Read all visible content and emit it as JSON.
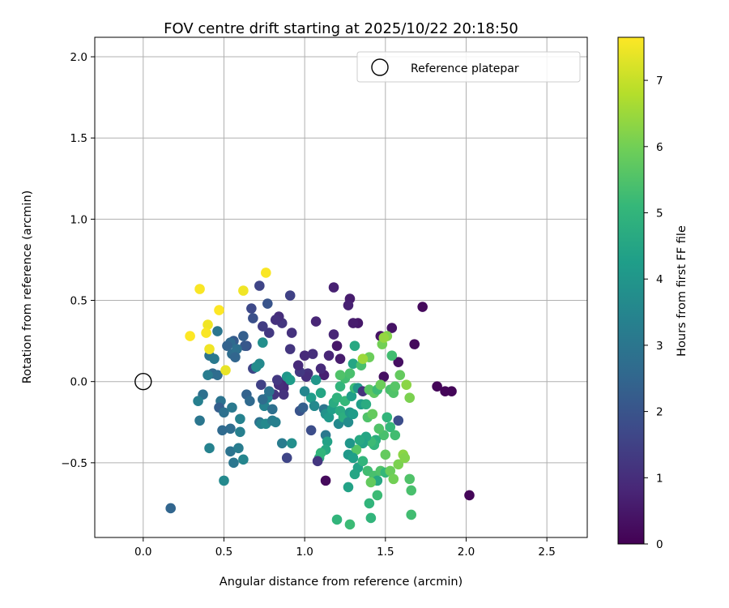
{
  "chart_data": {
    "type": "scatter",
    "title": "FOV centre drift starting at 2025/10/22 20:18:50",
    "xlabel": "Angular distance from reference (arcmin)",
    "ylabel": "Rotation from reference (arcmin)",
    "xlim": [
      -0.3,
      2.75
    ],
    "ylim": [
      -0.96,
      2.12
    ],
    "x_ticks": [
      0.0,
      0.5,
      1.0,
      1.5,
      2.0,
      2.5
    ],
    "x_tick_labels": [
      "0.0",
      "0.5",
      "1.0",
      "1.5",
      "2.0",
      "2.5"
    ],
    "y_ticks": [
      -0.5,
      0.0,
      0.5,
      1.0,
      1.5,
      2.0
    ],
    "y_tick_labels": [
      "−0.5",
      "0.0",
      "0.5",
      "1.0",
      "1.5",
      "2.0"
    ],
    "grid": true,
    "legend": {
      "label": "Reference platepar",
      "position": "top-right"
    },
    "reference_point": {
      "x": 0.0,
      "y": 0.0
    },
    "colorbar": {
      "label": "Hours from first FF file",
      "min": 0,
      "max": 7.65,
      "ticks": [
        0,
        1,
        2,
        3,
        4,
        5,
        6,
        7
      ],
      "tick_labels": [
        "0",
        "1",
        "2",
        "3",
        "4",
        "5",
        "6",
        "7"
      ],
      "colormap": "viridis",
      "stops": [
        "#440154",
        "#482878",
        "#3e4989",
        "#31688e",
        "#26828e",
        "#1f9e89",
        "#35b779",
        "#6ece58",
        "#b5de2b",
        "#fde725"
      ]
    },
    "series": [
      {
        "name": "FOV centre drift",
        "points": [
          [
            2.02,
            -0.7,
            0.1
          ],
          [
            1.91,
            -0.06,
            0.1
          ],
          [
            1.87,
            -0.06,
            0.1
          ],
          [
            1.82,
            -0.03,
            0.1
          ],
          [
            1.73,
            0.46,
            0.2
          ],
          [
            1.68,
            0.23,
            0.2
          ],
          [
            1.58,
            0.12,
            0.3
          ],
          [
            1.54,
            0.33,
            0.4
          ],
          [
            1.49,
            0.03,
            0.3
          ],
          [
            1.47,
            0.28,
            0.4
          ],
          [
            1.33,
            0.36,
            0.5
          ],
          [
            1.3,
            0.36,
            0.6
          ],
          [
            1.28,
            0.51,
            0.6
          ],
          [
            1.27,
            0.47,
            0.7
          ],
          [
            1.18,
            0.58,
            0.7
          ],
          [
            1.18,
            0.29,
            0.8
          ],
          [
            1.2,
            0.22,
            0.5
          ],
          [
            1.22,
            0.14,
            0.6
          ],
          [
            1.15,
            0.16,
            0.8
          ],
          [
            1.07,
            0.37,
            0.8
          ],
          [
            1.13,
            -0.61,
            0.2
          ],
          [
            1.12,
            0.04,
            0.7
          ],
          [
            1.1,
            0.08,
            0.9
          ],
          [
            1.05,
            0.17,
            1.0
          ],
          [
            1.02,
            0.05,
            1.1
          ],
          [
            1.0,
            0.16,
            0.9
          ],
          [
            1.01,
            0.03,
            1.0
          ],
          [
            0.97,
            0.06,
            1.3
          ],
          [
            0.96,
            0.1,
            0.9
          ],
          [
            0.92,
            0.3,
            1.1
          ],
          [
            0.91,
            0.2,
            1.2
          ],
          [
            0.86,
            0.36,
            1.2
          ],
          [
            0.84,
            0.4,
            1.0
          ],
          [
            0.82,
            0.38,
            1.1
          ],
          [
            0.78,
            0.3,
            1.3
          ],
          [
            0.74,
            0.34,
            1.4
          ],
          [
            0.91,
            0.53,
            1.5
          ],
          [
            0.72,
            0.59,
            1.6
          ],
          [
            0.67,
            0.45,
            1.7
          ],
          [
            0.68,
            0.39,
            1.9
          ],
          [
            0.77,
            0.48,
            2.0
          ],
          [
            0.88,
            0.0,
            0.8
          ],
          [
            0.87,
            -0.04,
            0.9
          ],
          [
            0.84,
            -0.02,
            1.0
          ],
          [
            0.81,
            -0.08,
            1.2
          ],
          [
            0.87,
            -0.08,
            1.1
          ],
          [
            0.83,
            0.01,
            1.3
          ],
          [
            0.73,
            -0.02,
            1.5
          ],
          [
            0.68,
            0.08,
            1.6
          ],
          [
            0.64,
            0.22,
            1.8
          ],
          [
            0.62,
            0.28,
            2.3
          ],
          [
            0.63,
            0.22,
            2.1
          ],
          [
            0.56,
            0.25,
            2.2
          ],
          [
            0.54,
            0.24,
            2.6
          ],
          [
            0.52,
            0.22,
            2.4
          ],
          [
            0.55,
            0.17,
            2.7
          ],
          [
            0.58,
            0.2,
            2.8
          ],
          [
            0.57,
            0.15,
            2.5
          ],
          [
            0.46,
            0.31,
            3.0
          ],
          [
            0.41,
            0.16,
            2.9
          ],
          [
            0.44,
            0.14,
            3.1
          ],
          [
            0.43,
            0.05,
            2.6
          ],
          [
            0.46,
            0.04,
            2.7
          ],
          [
            0.4,
            0.04,
            3.2
          ],
          [
            0.37,
            -0.08,
            2.8
          ],
          [
            0.34,
            -0.12,
            3.3
          ],
          [
            0.35,
            -0.24,
            3.0
          ],
          [
            0.41,
            -0.41,
            3.4
          ],
          [
            0.48,
            -0.12,
            2.9
          ],
          [
            0.47,
            -0.16,
            2.3
          ],
          [
            0.5,
            -0.19,
            2.8
          ],
          [
            0.55,
            -0.16,
            3.1
          ],
          [
            0.54,
            -0.29,
            2.7
          ],
          [
            0.49,
            -0.3,
            2.6
          ],
          [
            0.54,
            -0.43,
            2.9
          ],
          [
            0.56,
            -0.5,
            3.0
          ],
          [
            0.59,
            -0.41,
            3.2
          ],
          [
            0.6,
            -0.31,
            3.3
          ],
          [
            0.6,
            -0.23,
            3.4
          ],
          [
            0.62,
            -0.48,
            3.5
          ],
          [
            0.5,
            -0.61,
            3.6
          ],
          [
            0.17,
            -0.78,
            2.5
          ],
          [
            0.64,
            -0.08,
            2.4
          ],
          [
            0.66,
            -0.12,
            2.6
          ],
          [
            0.72,
            -0.25,
            2.8
          ],
          [
            0.73,
            -0.26,
            3.4
          ],
          [
            0.76,
            -0.26,
            3.6
          ],
          [
            0.8,
            -0.24,
            3.2
          ],
          [
            0.82,
            -0.25,
            3.3
          ],
          [
            0.75,
            -0.15,
            3.4
          ],
          [
            0.77,
            -0.1,
            3.5
          ],
          [
            0.74,
            -0.11,
            2.7
          ],
          [
            0.8,
            -0.17,
            2.8
          ],
          [
            0.78,
            -0.06,
            2.9
          ],
          [
            0.72,
            0.11,
            3.6
          ],
          [
            0.7,
            0.09,
            3.7
          ],
          [
            0.74,
            0.24,
            3.8
          ],
          [
            0.86,
            -0.38,
            3.2
          ],
          [
            0.89,
            -0.47,
            1.6
          ],
          [
            0.92,
            -0.38,
            3.8
          ],
          [
            0.89,
            0.03,
            4.0
          ],
          [
            0.91,
            0.01,
            4.2
          ],
          [
            0.97,
            -0.18,
            2.0
          ],
          [
            0.99,
            -0.16,
            2.3
          ],
          [
            1.04,
            -0.1,
            4.2
          ],
          [
            1.0,
            -0.06,
            3.5
          ],
          [
            1.06,
            -0.15,
            3.6
          ],
          [
            1.04,
            -0.3,
            1.8
          ],
          [
            1.07,
            0.01,
            4.0
          ],
          [
            1.1,
            -0.07,
            4.5
          ],
          [
            1.12,
            -0.17,
            3.0
          ],
          [
            1.13,
            -0.33,
            3.1
          ],
          [
            1.13,
            -0.2,
            3.9
          ],
          [
            1.15,
            -0.22,
            4.1
          ],
          [
            1.17,
            -0.17,
            4.3
          ],
          [
            1.18,
            -0.13,
            4.7
          ],
          [
            1.2,
            -0.1,
            4.9
          ],
          [
            1.14,
            -0.37,
            4.4
          ],
          [
            1.13,
            -0.42,
            4.6
          ],
          [
            1.09,
            -0.47,
            4.8
          ],
          [
            1.1,
            -0.44,
            5.0
          ],
          [
            1.08,
            -0.49,
            1.2
          ],
          [
            1.21,
            -0.26,
            3.6
          ],
          [
            1.22,
            -0.18,
            4.7
          ],
          [
            1.24,
            -0.22,
            4.8
          ],
          [
            1.22,
            -0.03,
            5.0
          ],
          [
            1.25,
            -0.12,
            5.1
          ],
          [
            1.27,
            -0.25,
            3.7
          ],
          [
            1.28,
            -0.19,
            4.0
          ],
          [
            1.3,
            -0.2,
            4.2
          ],
          [
            1.29,
            -0.09,
            4.3
          ],
          [
            1.31,
            -0.04,
            5.2
          ],
          [
            1.25,
            0.02,
            5.3
          ],
          [
            1.28,
            0.05,
            5.4
          ],
          [
            1.22,
            0.04,
            5.5
          ],
          [
            1.3,
            0.11,
            4.5
          ],
          [
            1.31,
            0.22,
            4.6
          ],
          [
            1.35,
            0.1,
            5.4
          ],
          [
            1.33,
            -0.04,
            4.0
          ],
          [
            1.36,
            -0.06,
            1.1
          ],
          [
            1.35,
            -0.14,
            4.3
          ],
          [
            1.38,
            -0.14,
            4.7
          ],
          [
            1.39,
            -0.22,
            5.5
          ],
          [
            1.4,
            -0.05,
            5.6
          ],
          [
            1.42,
            -0.2,
            5.8
          ],
          [
            1.43,
            -0.07,
            5.7
          ],
          [
            1.45,
            -0.05,
            5.2
          ],
          [
            1.47,
            -0.02,
            5.9
          ],
          [
            1.4,
            0.15,
            5.9
          ],
          [
            1.48,
            0.23,
            6.0
          ],
          [
            1.51,
            0.28,
            6.2
          ],
          [
            1.49,
            0.27,
            6.4
          ],
          [
            1.54,
            0.16,
            5.3
          ],
          [
            1.53,
            -0.05,
            5.4
          ],
          [
            1.55,
            -0.07,
            5.5
          ],
          [
            1.56,
            -0.03,
            5.6
          ],
          [
            1.59,
            0.04,
            5.8
          ],
          [
            1.51,
            -0.22,
            5.0
          ],
          [
            1.53,
            -0.28,
            5.1
          ],
          [
            1.58,
            -0.24,
            1.8
          ],
          [
            1.56,
            -0.33,
            5.3
          ],
          [
            1.49,
            -0.33,
            5.4
          ],
          [
            1.46,
            -0.29,
            5.5
          ],
          [
            1.44,
            -0.36,
            4.8
          ],
          [
            1.43,
            -0.39,
            5.0
          ],
          [
            1.41,
            -0.37,
            5.2
          ],
          [
            1.38,
            -0.34,
            4.5
          ],
          [
            1.36,
            -0.38,
            4.4
          ],
          [
            1.34,
            -0.36,
            4.6
          ],
          [
            1.32,
            -0.42,
            5.6
          ],
          [
            1.28,
            -0.38,
            4.0
          ],
          [
            1.27,
            -0.45,
            4.1
          ],
          [
            1.3,
            -0.47,
            4.3
          ],
          [
            1.33,
            -0.53,
            4.4
          ],
          [
            1.31,
            -0.57,
            4.5
          ],
          [
            1.36,
            -0.49,
            5.0
          ],
          [
            1.39,
            -0.55,
            5.3
          ],
          [
            1.43,
            -0.58,
            5.4
          ],
          [
            1.47,
            -0.55,
            5.5
          ],
          [
            1.5,
            -0.56,
            5.1
          ],
          [
            1.5,
            -0.45,
            5.8
          ],
          [
            1.53,
            -0.55,
            5.9
          ],
          [
            1.55,
            -0.6,
            6.0
          ],
          [
            1.58,
            -0.51,
            6.1
          ],
          [
            1.61,
            -0.45,
            6.3
          ],
          [
            1.62,
            -0.47,
            6.2
          ],
          [
            1.65,
            -0.6,
            5.5
          ],
          [
            1.66,
            -0.67,
            5.4
          ],
          [
            1.66,
            -0.82,
            5.3
          ],
          [
            1.45,
            -0.7,
            5.2
          ],
          [
            1.4,
            -0.75,
            5.0
          ],
          [
            1.41,
            -0.84,
            5.0
          ],
          [
            1.45,
            -0.61,
            4.6
          ],
          [
            1.27,
            -0.65,
            4.4
          ],
          [
            1.28,
            -0.88,
            5.2
          ],
          [
            1.2,
            -0.85,
            5.0
          ],
          [
            1.41,
            -0.62,
            5.8
          ],
          [
            1.65,
            -0.1,
            6.1
          ],
          [
            1.63,
            -0.02,
            6.3
          ],
          [
            1.36,
            0.14,
            6.5
          ],
          [
            0.76,
            0.67,
            7.6
          ],
          [
            0.62,
            0.56,
            7.5
          ],
          [
            0.35,
            0.57,
            7.6
          ],
          [
            0.47,
            0.44,
            7.7
          ],
          [
            0.4,
            0.35,
            7.5
          ],
          [
            0.39,
            0.3,
            7.6
          ],
          [
            0.29,
            0.28,
            7.7
          ],
          [
            0.41,
            0.2,
            7.5
          ],
          [
            0.51,
            0.07,
            7.4
          ]
        ]
      }
    ]
  }
}
